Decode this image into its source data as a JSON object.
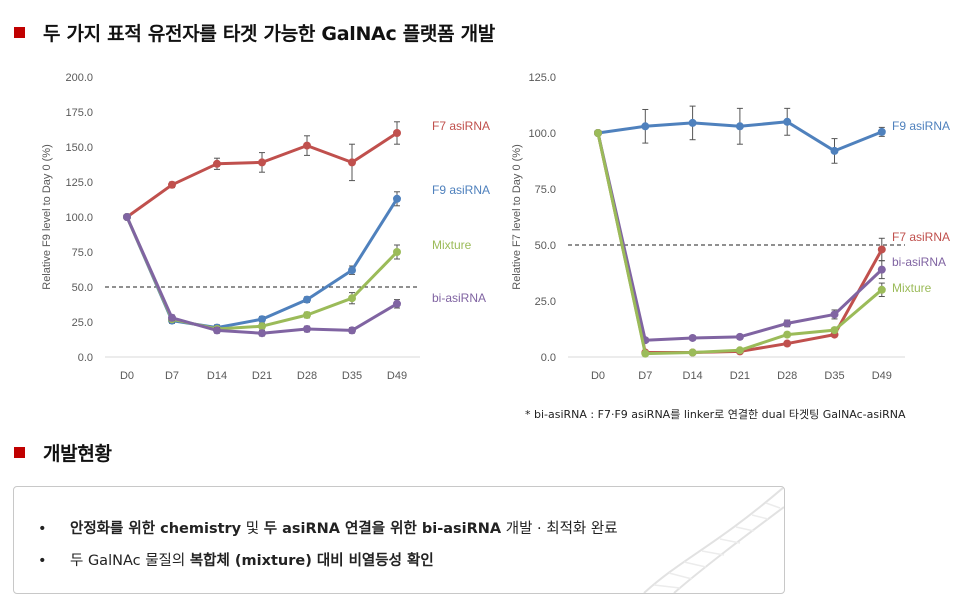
{
  "section1": {
    "title": "두 가지 표적 유전자를 타겟 가능한 GalNAc 플랫폼 개발"
  },
  "section2": {
    "title": "개발현황"
  },
  "footnote": "* bi-asiRNA : F7·F9 asiRNA를 linker로 연결한 dual 타겟팅 GalNAc-asiRNA",
  "status": {
    "item1": {
      "bullet": "•",
      "p1": "안정화를 위한 chemistry",
      "p2": " 및 ",
      "p3": "두 asiRNA 연결을 위한 bi-asiRNA",
      "p4": " 개발 · 최적화 완료"
    },
    "item2": {
      "bullet": "•",
      "p1": "두 GalNAc 물질의 ",
      "p2": "복합체 (mixture) 대비 비열등성 확인"
    }
  },
  "chart_data": [
    {
      "type": "line",
      "ylabel": "Relative F9 level to Day 0 (%)",
      "xlabel": "",
      "categories": [
        "D0",
        "D7",
        "D14",
        "D21",
        "D28",
        "D35",
        "D49"
      ],
      "ylim": [
        0,
        200
      ],
      "yticks": [
        "0.0",
        "25.0",
        "50.0",
        "75.0",
        "100.0",
        "125.0",
        "150.0",
        "175.0",
        "200.0"
      ],
      "reference_line": 50,
      "series": [
        {
          "name": "F7 asiRNA",
          "color": "#c0504d",
          "values": [
            100,
            123,
            138,
            139,
            151,
            139,
            160
          ],
          "errors": [
            0,
            2,
            4,
            7,
            7,
            13,
            8
          ]
        },
        {
          "name": "F9 asiRNA",
          "color": "#4f81bd",
          "values": [
            100,
            26,
            21,
            27,
            41,
            62,
            113
          ],
          "errors": [
            0,
            2,
            2,
            2,
            2,
            3,
            5
          ]
        },
        {
          "name": "Mixture",
          "color": "#9bbb59",
          "values": [
            100,
            27,
            20,
            22,
            30,
            42,
            75
          ],
          "errors": [
            0,
            2,
            2,
            2,
            2,
            4,
            5
          ]
        },
        {
          "name": "bi-asiRNA",
          "color": "#8064a2",
          "values": [
            100,
            28,
            19,
            17,
            20,
            19,
            38
          ],
          "errors": [
            0,
            2,
            2,
            2,
            2,
            2,
            3
          ]
        }
      ]
    },
    {
      "type": "line",
      "ylabel": "Relative F7 level to Day 0 (%)",
      "xlabel": "",
      "categories": [
        "D0",
        "D7",
        "D14",
        "D21",
        "D28",
        "D35",
        "D49"
      ],
      "ylim": [
        0,
        125
      ],
      "yticks": [
        "0.0",
        "25.0",
        "50.0",
        "75.0",
        "100.0",
        "125.0"
      ],
      "reference_line": 50,
      "series": [
        {
          "name": "F9 asiRNA",
          "color": "#4f81bd",
          "values": [
            100,
            103,
            104.5,
            103,
            105,
            92,
            100.5
          ],
          "errors": [
            0,
            7.5,
            7.5,
            8,
            6,
            5.5,
            2
          ]
        },
        {
          "name": "F7 asiRNA",
          "color": "#c0504d",
          "values": [
            100,
            2,
            2,
            2.5,
            6,
            10,
            48
          ],
          "errors": [
            0,
            0.5,
            0.5,
            0.5,
            1,
            1,
            5
          ]
        },
        {
          "name": "bi-asiRNA",
          "color": "#8064a2",
          "values": [
            100,
            7.5,
            8.5,
            9,
            15,
            19,
            39
          ],
          "errors": [
            0,
            1,
            1,
            1,
            1.5,
            2,
            4
          ]
        },
        {
          "name": "Mixture",
          "color": "#9bbb59",
          "values": [
            100,
            1.5,
            2,
            3,
            10,
            12,
            30
          ],
          "errors": [
            0,
            0.5,
            0.5,
            0.5,
            1,
            1,
            3
          ]
        }
      ]
    }
  ]
}
